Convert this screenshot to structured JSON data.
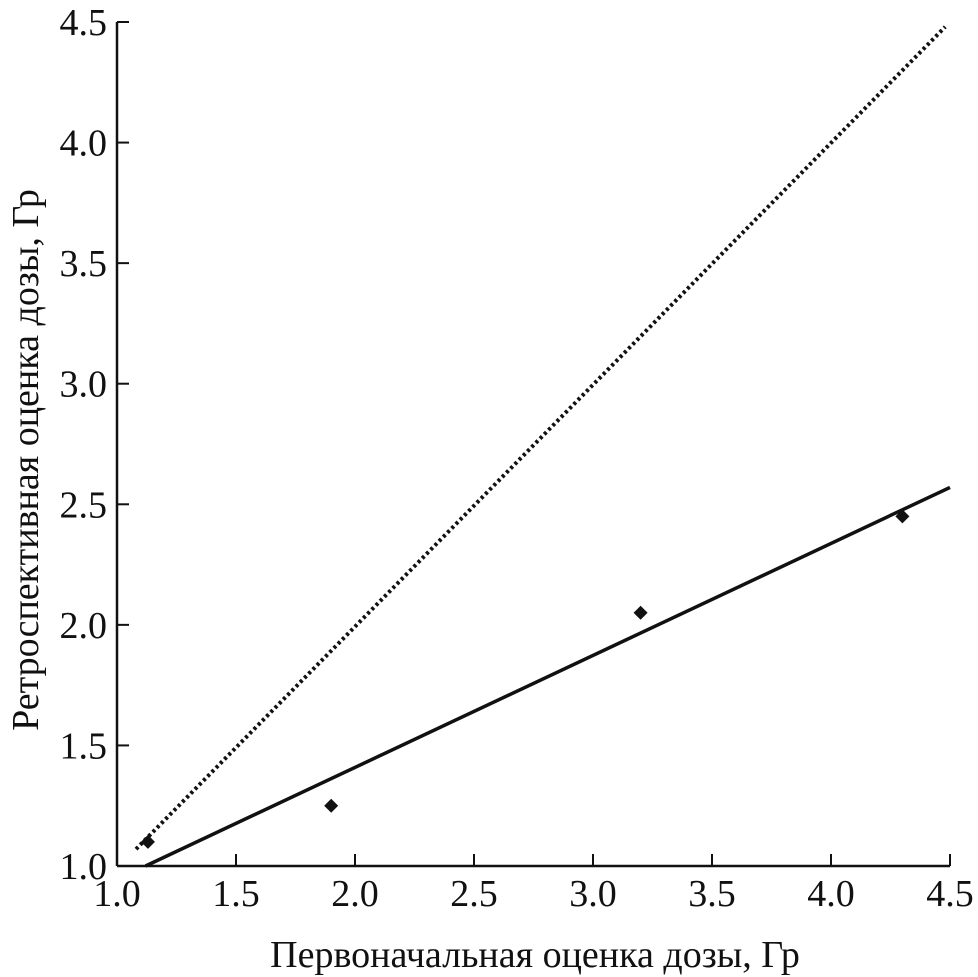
{
  "chart_data": {
    "type": "scatter",
    "title": "",
    "xlabel": "Первоначальная оценка дозы, Гр",
    "ylabel": "Ретроспективная оценка дозы, Гр",
    "xlim": [
      1.0,
      4.5
    ],
    "ylim": [
      1.0,
      4.5
    ],
    "xticks": [
      "1.0",
      "1.5",
      "2.0",
      "2.5",
      "3.0",
      "3.5",
      "4.0",
      "4.5"
    ],
    "yticks": [
      "1.0",
      "1.5",
      "2.0",
      "2.5",
      "3.0",
      "3.5",
      "4.0",
      "4.5"
    ],
    "grid": false,
    "legend": "none",
    "series": [
      {
        "type": "scatter",
        "marker": "diamond",
        "color": "#111111",
        "x": [
          1.13,
          1.9,
          3.2,
          4.3
        ],
        "y": [
          1.1,
          1.25,
          2.05,
          2.45
        ]
      },
      {
        "type": "line",
        "style": "solid",
        "color": "#111111",
        "x": [
          1.12,
          4.5
        ],
        "y": [
          1.0,
          2.57
        ]
      },
      {
        "type": "line",
        "style": "dotted",
        "color": "#111111",
        "x": [
          1.08,
          4.48
        ],
        "y": [
          1.07,
          4.48
        ]
      }
    ]
  }
}
